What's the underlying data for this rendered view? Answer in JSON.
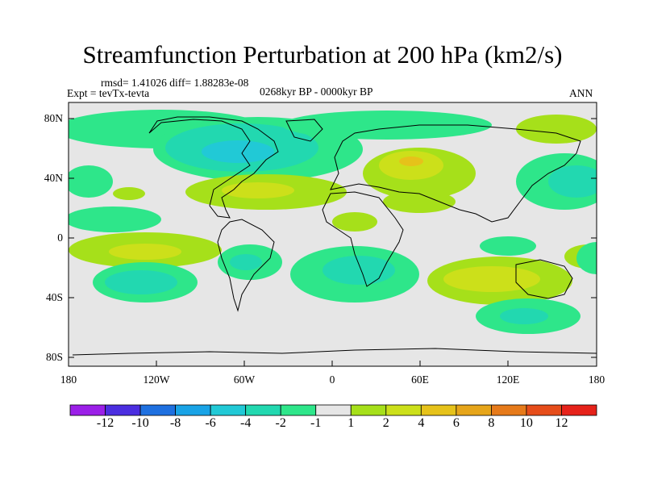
{
  "title": "Streamfunction Perturbation at 200 hPa (km2/s)",
  "stats": "rmsd= 1.41026 diff= 1.88283e-08",
  "experiment": "Expt = tevTx-tevta",
  "period": "0268kyr BP - 0000kyr BP",
  "season": "ANN",
  "lat_ticks": [
    "80N",
    "40N",
    "0",
    "40S",
    "80S"
  ],
  "lon_ticks": [
    "180",
    "120W",
    "60W",
    "0",
    "60E",
    "120E",
    "180"
  ],
  "colorbar": {
    "labels": [
      "-12",
      "-10",
      "-8",
      "-6",
      "-4",
      "-2",
      "-1",
      "1",
      "2",
      "4",
      "6",
      "8",
      "10",
      "12"
    ],
    "colors": [
      "#9b1fe8",
      "#4b2ee0",
      "#1e70e0",
      "#19a3e6",
      "#21c9d6",
      "#22d8b0",
      "#2ee68a",
      "#e6e6e6",
      "#a6e01a",
      "#cce01a",
      "#e6c21a",
      "#e6a51a",
      "#e67a1a",
      "#e64d1a",
      "#e6221a"
    ]
  },
  "field_cells": [
    {
      "lat": 75,
      "lon": -120,
      "level": -2
    },
    {
      "lat": 75,
      "lon": -60,
      "level": -2
    },
    {
      "lat": 75,
      "lon": 0,
      "level": -2
    },
    {
      "lat": 55,
      "lon": -90,
      "level": -4
    },
    {
      "lat": 55,
      "lon": -75,
      "level": -6
    },
    {
      "lat": 55,
      "lon": -45,
      "level": -4
    },
    {
      "lat": 50,
      "lon": -160,
      "level": -2
    },
    {
      "lat": 35,
      "lon": -155,
      "level": 2
    },
    {
      "lat": 25,
      "lon": -45,
      "level": 2
    },
    {
      "lat": 25,
      "lon": 60,
      "level": 2
    },
    {
      "lat": 50,
      "lon": 45,
      "level": 4
    },
    {
      "lat": 75,
      "lon": 60,
      "level": -2
    },
    {
      "lat": 75,
      "lon": 150,
      "level": 2
    },
    {
      "lat": 40,
      "lon": 160,
      "level": -4
    },
    {
      "lat": 15,
      "lon": -150,
      "level": -2
    },
    {
      "lat": -10,
      "lon": -130,
      "level": 2
    },
    {
      "lat": -30,
      "lon": -150,
      "level": -4
    },
    {
      "lat": -15,
      "lon": -80,
      "level": -2
    },
    {
      "lat": -20,
      "lon": 15,
      "level": -4
    },
    {
      "lat": -30,
      "lon": 90,
      "level": 2
    },
    {
      "lat": -45,
      "lon": 110,
      "level": -2
    },
    {
      "lat": 10,
      "lon": 20,
      "level": 2
    }
  ]
}
